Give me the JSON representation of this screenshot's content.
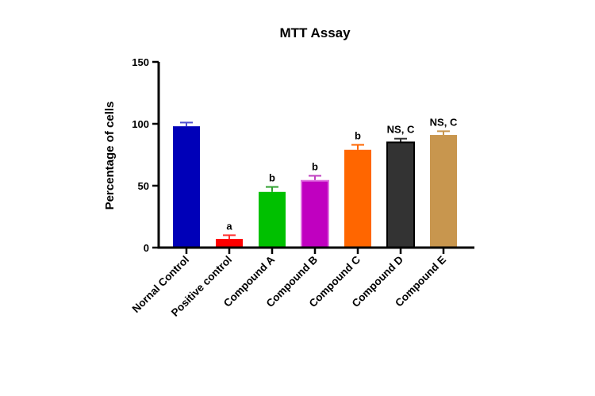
{
  "chart_data": {
    "type": "bar",
    "title": "MTT Assay",
    "xlabel": "",
    "ylabel": "Percentage of cells",
    "ylim": [
      0,
      150
    ],
    "yticks": [
      0,
      50,
      100,
      150
    ],
    "categories": [
      "Nornal Control",
      "Positive control",
      "Compound A",
      "Compound B",
      "Compound C",
      "Compound D",
      "Compound E"
    ],
    "values": [
      98,
      7,
      45,
      54,
      79,
      85,
      91
    ],
    "error_upper": [
      101,
      10,
      49,
      58,
      83,
      88,
      94
    ],
    "significance": [
      "",
      "a",
      "b",
      "b",
      "b",
      "NS, C",
      "NS, C"
    ],
    "colors": [
      "#0000B8",
      "#FF0000",
      "#00C000",
      "#C000C0",
      "#FF6600",
      "#333333",
      "#C8964E"
    ],
    "error_colors": [
      "#5050D0",
      "#FF3030",
      "#30A030",
      "#C040C0",
      "#FF6600",
      "#333333",
      "#C8964E"
    ],
    "grid": false,
    "legend": "none"
  }
}
